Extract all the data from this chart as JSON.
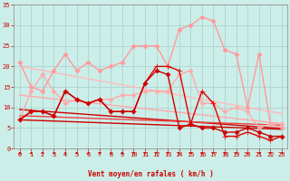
{
  "background_color": "#cceee8",
  "grid_color": "#aacccc",
  "xlabel": "Vent moyen/en rafales ( km/h )",
  "ylim": [
    0,
    35
  ],
  "xlim": [
    -0.5,
    23.5
  ],
  "yticks": [
    0,
    5,
    10,
    15,
    20,
    25,
    30,
    35
  ],
  "xticks": [
    0,
    1,
    2,
    3,
    4,
    5,
    6,
    7,
    8,
    9,
    10,
    11,
    12,
    13,
    14,
    15,
    16,
    17,
    18,
    19,
    20,
    21,
    22,
    23
  ],
  "series": [
    {
      "color": "#ff9999",
      "lw": 1.0,
      "marker": "D",
      "ms": 2.5,
      "y": [
        21,
        15,
        14,
        19,
        23,
        19,
        21,
        19,
        20,
        21,
        25,
        25,
        25,
        20,
        29,
        30,
        32,
        31,
        24,
        23,
        10,
        23,
        6,
        5
      ]
    },
    {
      "color": "#ffaaaa",
      "lw": 1.0,
      "marker": "D",
      "ms": 2.5,
      "y": [
        7,
        14,
        18,
        14,
        11,
        12,
        11,
        12,
        12,
        13,
        13,
        14,
        14,
        14,
        18,
        19,
        11,
        11,
        9,
        10,
        9,
        5,
        6,
        6
      ]
    },
    {
      "color": "#ffbbbb",
      "lw": 1.0,
      "marker": null,
      "ms": 0,
      "y": [
        20,
        19.5,
        19.0,
        18.5,
        18.0,
        17.5,
        17.0,
        16.5,
        16.0,
        15.5,
        15.0,
        14.5,
        14.0,
        13.5,
        13.0,
        12.5,
        12.0,
        11.5,
        11.0,
        10.5,
        10.0,
        9.5,
        9.0,
        8.5
      ]
    },
    {
      "color": "#ffaaaa",
      "lw": 1.0,
      "marker": null,
      "ms": 0,
      "y": [
        13.0,
        12.7,
        12.4,
        12.1,
        11.8,
        11.5,
        11.2,
        10.9,
        10.6,
        10.3,
        10.0,
        9.7,
        9.4,
        9.1,
        8.8,
        8.5,
        8.2,
        7.9,
        7.6,
        7.3,
        7.0,
        6.7,
        6.4,
        6.1
      ]
    },
    {
      "color": "#dd0000",
      "lw": 1.0,
      "marker": "+",
      "ms": 4,
      "y": [
        7,
        9,
        9,
        8,
        14,
        12,
        11,
        12,
        9,
        9,
        9,
        16,
        20,
        20,
        19,
        6,
        14,
        11,
        3,
        3,
        4,
        3,
        2,
        3
      ]
    },
    {
      "color": "#cc0000",
      "lw": 1.0,
      "marker": "D",
      "ms": 2.5,
      "y": [
        7,
        9,
        9,
        8,
        14,
        12,
        11,
        12,
        9,
        9,
        9,
        16,
        19,
        18,
        5,
        6,
        5,
        5,
        4,
        4,
        5,
        4,
        3,
        3
      ]
    },
    {
      "color": "#cc0000",
      "lw": 1.0,
      "marker": null,
      "ms": 0,
      "y": [
        9.5,
        9.3,
        9.1,
        8.9,
        8.7,
        8.5,
        8.3,
        8.1,
        7.9,
        7.7,
        7.5,
        7.3,
        7.1,
        6.9,
        6.7,
        6.5,
        6.3,
        6.1,
        5.9,
        5.7,
        5.5,
        5.3,
        5.1,
        4.9
      ]
    },
    {
      "color": "#cc0000",
      "lw": 1.0,
      "marker": null,
      "ms": 0,
      "y": [
        7.0,
        6.9,
        6.8,
        6.7,
        6.6,
        6.5,
        6.4,
        6.3,
        6.2,
        6.1,
        6.0,
        5.9,
        5.8,
        5.7,
        5.6,
        5.5,
        5.4,
        5.3,
        5.2,
        5.1,
        5.0,
        4.9,
        4.8,
        4.7
      ]
    },
    {
      "color": "#ee4444",
      "lw": 1.0,
      "marker": null,
      "ms": 0,
      "y": [
        8.0,
        7.9,
        7.8,
        7.7,
        7.6,
        7.5,
        7.4,
        7.3,
        7.2,
        7.1,
        7.0,
        6.9,
        6.8,
        6.7,
        6.6,
        6.5,
        6.4,
        6.3,
        6.2,
        6.1,
        6.0,
        5.9,
        5.8,
        5.7
      ]
    }
  ],
  "label_color": "#cc0000",
  "tick_color": "#cc0000",
  "spine_color": "#888888",
  "arrow_angles": [
    315,
    45,
    45,
    45,
    45,
    45,
    45,
    45,
    90,
    45,
    45,
    45,
    45,
    45,
    135,
    45,
    45,
    45,
    315,
    315,
    315,
    315,
    315,
    315
  ]
}
